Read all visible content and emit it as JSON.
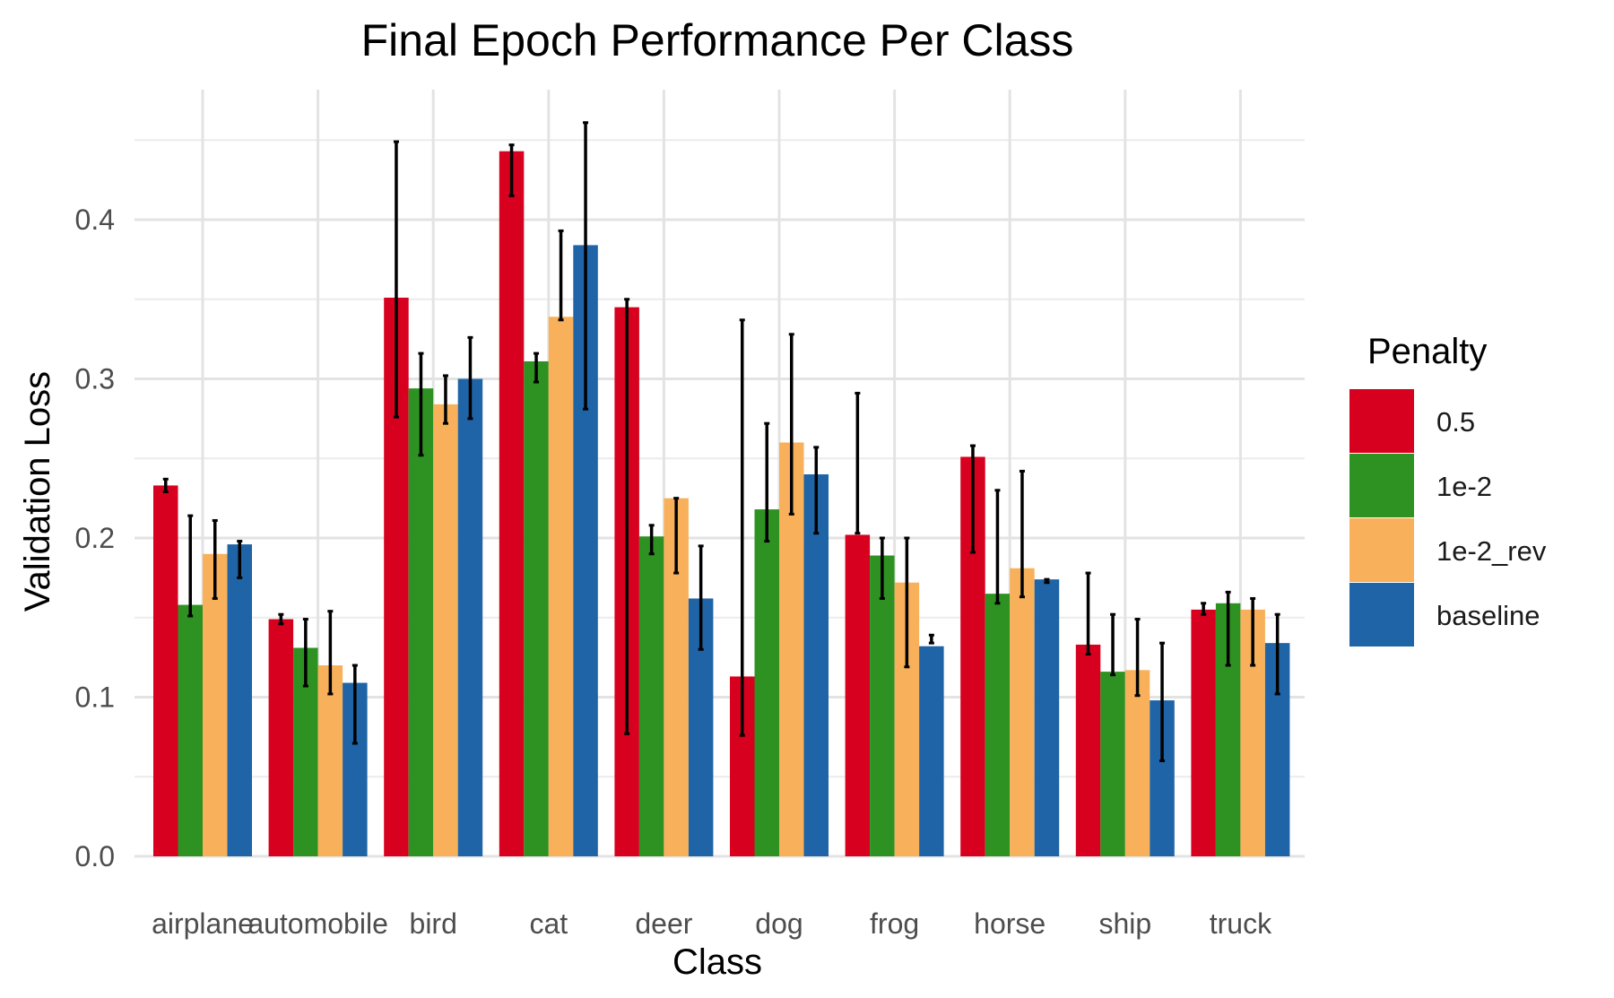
{
  "chart_data": {
    "type": "bar",
    "title": "Final Epoch Performance Per Class",
    "xlabel": "Class",
    "ylabel": "Validation Loss",
    "ylim": [
      0,
      0.46
    ],
    "yticks": [
      "0.0",
      "0.1",
      "0.2",
      "0.3",
      "0.4"
    ],
    "yticks_values": [
      0,
      0.1,
      0.2,
      0.3,
      0.4
    ],
    "grid": true,
    "legend": {
      "title": "Penalty",
      "placement": "right"
    },
    "categories": [
      "airplane",
      "automobile",
      "bird",
      "cat",
      "deer",
      "dog",
      "frog",
      "horse",
      "ship",
      "truck"
    ],
    "series": [
      {
        "name": "0.5",
        "color": "#d7001f",
        "values": [
          0.233,
          0.149,
          0.351,
          0.443,
          0.345,
          0.113,
          0.202,
          0.251,
          0.133,
          0.155
        ],
        "err_low": [
          0.229,
          0.146,
          0.276,
          0.415,
          0.077,
          0.076,
          0.203,
          0.191,
          0.127,
          0.152
        ],
        "err_high": [
          0.237,
          0.152,
          0.449,
          0.447,
          0.35,
          0.337,
          0.291,
          0.258,
          0.178,
          0.159
        ]
      },
      {
        "name": "1e-2",
        "color": "#2e9222",
        "values": [
          0.158,
          0.131,
          0.294,
          0.311,
          0.201,
          0.218,
          0.189,
          0.165,
          0.116,
          0.159
        ],
        "err_low": [
          0.151,
          0.107,
          0.252,
          0.298,
          0.19,
          0.198,
          0.162,
          0.159,
          0.114,
          0.12
        ],
        "err_high": [
          0.214,
          0.149,
          0.316,
          0.316,
          0.208,
          0.272,
          0.2,
          0.23,
          0.152,
          0.166
        ]
      },
      {
        "name": "1e-2_rev",
        "color": "#f8b15a",
        "values": [
          0.19,
          0.12,
          0.284,
          0.339,
          0.225,
          0.26,
          0.172,
          0.181,
          0.117,
          0.155
        ],
        "err_low": [
          0.162,
          0.102,
          0.272,
          0.337,
          0.178,
          0.215,
          0.119,
          0.163,
          0.101,
          0.12
        ],
        "err_high": [
          0.211,
          0.154,
          0.302,
          0.393,
          0.225,
          0.328,
          0.2,
          0.242,
          0.149,
          0.162
        ]
      },
      {
        "name": "baseline",
        "color": "#1f64a6",
        "values": [
          0.196,
          0.109,
          0.3,
          0.384,
          0.162,
          0.24,
          0.132,
          0.174,
          0.098,
          0.134
        ],
        "err_low": [
          0.175,
          0.071,
          0.275,
          0.281,
          0.13,
          0.203,
          0.134,
          0.172,
          0.06,
          0.102
        ],
        "err_high": [
          0.198,
          0.12,
          0.326,
          0.461,
          0.195,
          0.257,
          0.139,
          0.174,
          0.134,
          0.152
        ]
      }
    ]
  }
}
